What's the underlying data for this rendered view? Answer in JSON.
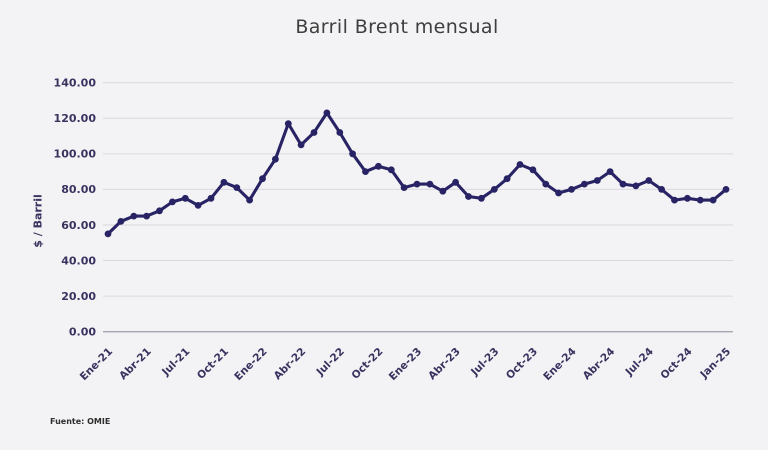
{
  "footer": {
    "source": "Fuente: OMIE"
  },
  "chart_data": {
    "type": "line",
    "title": "Barril Brent mensual",
    "xlabel": "",
    "ylabel": "$ / Barril",
    "ylim": [
      0,
      140
    ],
    "grid": true,
    "legend": false,
    "marker": "circle",
    "y_ticks": [
      0,
      20,
      40,
      60,
      80,
      100,
      120,
      140
    ],
    "y_tick_labels": [
      "0.00",
      "20.00",
      "40.00",
      "60.00",
      "80.00",
      "100.00",
      "120.00",
      "140.00"
    ],
    "x_tick_every": 3,
    "x_tick_labels": [
      "Ene-21",
      "Abr-21",
      "Jul-21",
      "Oct-21",
      "Ene-22",
      "Abr-22",
      "Jul-22",
      "Oct-22",
      "Ene-23",
      "Abr-23",
      "Jul-23",
      "Oct-23",
      "Ene-24",
      "Abr-24",
      "Jul-24",
      "Oct-24",
      "Jan-25"
    ],
    "values": [
      55,
      62,
      65,
      65,
      68,
      73,
      75,
      71,
      75,
      84,
      81,
      74,
      86,
      97,
      117,
      105,
      112,
      123,
      112,
      100,
      90,
      93,
      91,
      81,
      83,
      83,
      79,
      84,
      76,
      75,
      80,
      86,
      94,
      91,
      83,
      78,
      80,
      83,
      85,
      90,
      83,
      82,
      85,
      80,
      74,
      75,
      74,
      74,
      80
    ],
    "colors": {
      "line": "#282364",
      "marker": "#282364",
      "grid": "#d9d8e0",
      "axis_line": "#a5a4af",
      "tick_text": "#38335f",
      "title_text": "#3e3e3e",
      "background": "#f3f2f4",
      "source_text": "#2e2e2e"
    }
  }
}
